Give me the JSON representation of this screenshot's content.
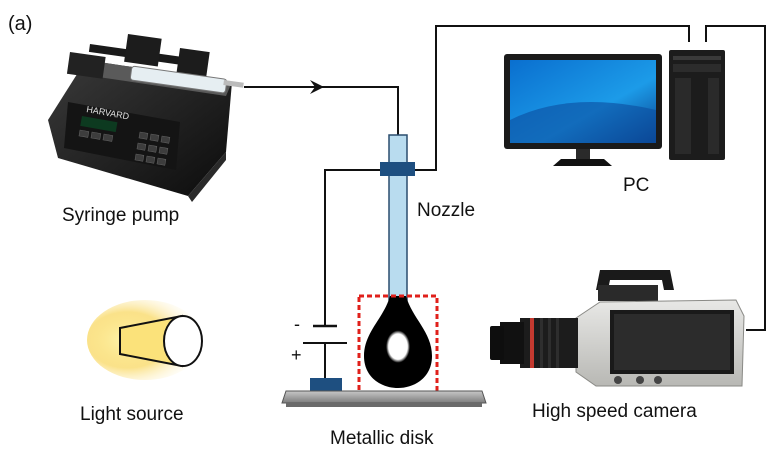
{
  "panel_label": "(a)",
  "labels": {
    "syringe_pump": "Syringe pump",
    "nozzle": "Nozzle",
    "pc": "PC",
    "light_source": "Light source",
    "metallic_disk": "Metallic disk",
    "high_speed_camera": "High speed camera",
    "minus": "-",
    "plus": "+"
  },
  "pump_brand": "HARVARD",
  "colors": {
    "wire": "#111111",
    "nozzle_fill": "#b9dcef",
    "nozzle_stroke": "#2a4d6e",
    "clamp": "#1e4f80",
    "highlight_box": "#e0201b",
    "light_glow": "#f8d24a"
  }
}
